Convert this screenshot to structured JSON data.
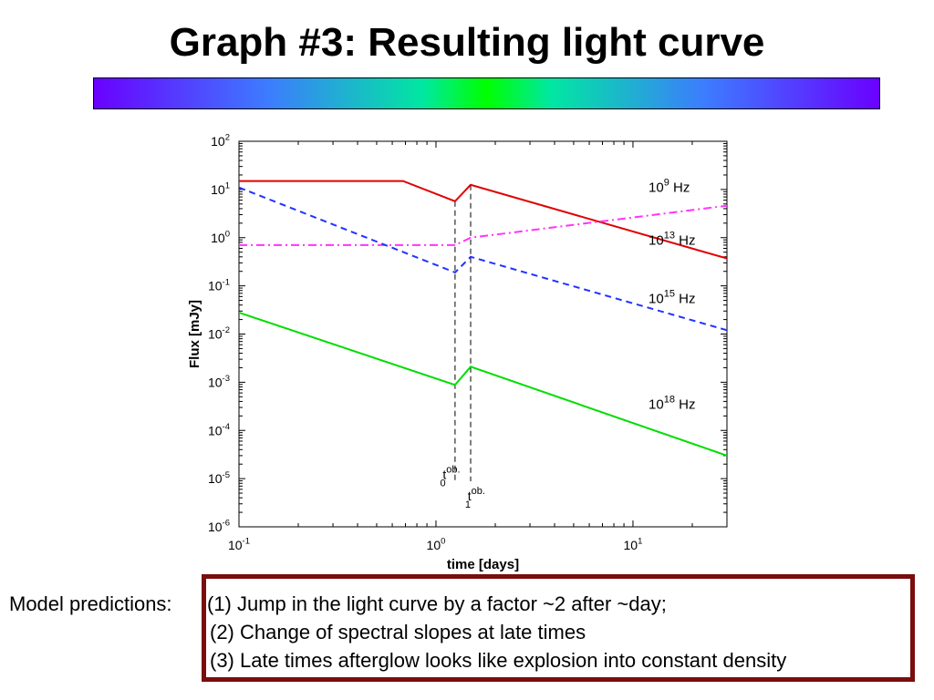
{
  "slide_title": "Graph #3: Resulting light curve",
  "chart_data": {
    "type": "line",
    "xscale": "log",
    "yscale": "log",
    "xlim": [
      0.1,
      30
    ],
    "ylim": [
      1e-06,
      100
    ],
    "xlabel": "time [days]",
    "ylabel": "Flux [mJy]",
    "x_ticks": [
      {
        "value": 0.1,
        "base": "10",
        "exp": "-1"
      },
      {
        "value": 1,
        "base": "10",
        "exp": "0"
      },
      {
        "value": 10,
        "base": "10",
        "exp": "1"
      }
    ],
    "y_ticks": [
      {
        "value": 100,
        "base": "10",
        "exp": "2"
      },
      {
        "value": 10,
        "base": "10",
        "exp": "1"
      },
      {
        "value": 1,
        "base": "10",
        "exp": "0"
      },
      {
        "value": 0.1,
        "base": "10",
        "exp": "-1"
      },
      {
        "value": 0.01,
        "base": "10",
        "exp": "-2"
      },
      {
        "value": 0.001,
        "base": "10",
        "exp": "-3"
      },
      {
        "value": 0.0001,
        "base": "10",
        "exp": "-4"
      },
      {
        "value": 1e-05,
        "base": "10",
        "exp": "-5"
      },
      {
        "value": 1e-06,
        "base": "10",
        "exp": "-6"
      }
    ],
    "series": [
      {
        "base": "10",
        "exp": "9",
        "unit": "Hz",
        "color": "#e00000",
        "dash": "solid",
        "label_at": [
          12,
          9
        ],
        "points": [
          [
            0.1,
            15
          ],
          [
            0.68,
            15
          ],
          [
            1.25,
            5.7
          ],
          [
            1.5,
            12.5
          ],
          [
            30,
            0.37
          ]
        ]
      },
      {
        "base": "10",
        "exp": "13",
        "unit": "Hz",
        "color": "#ff33ff",
        "dash": "dashdot",
        "label_at": [
          12,
          0.72
        ],
        "points": [
          [
            0.1,
            0.7
          ],
          [
            1.25,
            0.7
          ],
          [
            1.5,
            1.0
          ],
          [
            30,
            4.6
          ]
        ]
      },
      {
        "base": "10",
        "exp": "15",
        "unit": "Hz",
        "color": "#2233ff",
        "dash": "dashed",
        "label_at": [
          12,
          0.044
        ],
        "points": [
          [
            0.1,
            11
          ],
          [
            1.25,
            0.19
          ],
          [
            1.5,
            0.4
          ],
          [
            30,
            0.012
          ]
        ]
      },
      {
        "base": "10",
        "exp": "18",
        "unit": "Hz",
        "color": "#00dd00",
        "dash": "solid",
        "label_at": [
          12,
          0.00028
        ],
        "points": [
          [
            0.1,
            0.028
          ],
          [
            1.25,
            0.00088
          ],
          [
            1.5,
            0.0021
          ],
          [
            30,
            3e-05
          ]
        ]
      }
    ],
    "vlines": [
      {
        "x": 1.25,
        "y_top": 5.7,
        "label_base": "t",
        "label_sup": "ob.",
        "label_sub": "0",
        "label_at": [
          1.18,
          9.9e-06
        ]
      },
      {
        "x": 1.5,
        "y_top": 12.5,
        "label_base": "t",
        "label_sup": "ob.",
        "label_sub": "1",
        "label_at": [
          1.58,
          3.5e-06
        ]
      }
    ]
  },
  "predictions": {
    "label": "Model predictions:",
    "items": [
      "(1) Jump in the light curve by a factor ~2 after ~day;",
      "(2) Change of spectral slopes at late times",
      "(3) Late times afterglow looks like explosion into constant density"
    ]
  }
}
